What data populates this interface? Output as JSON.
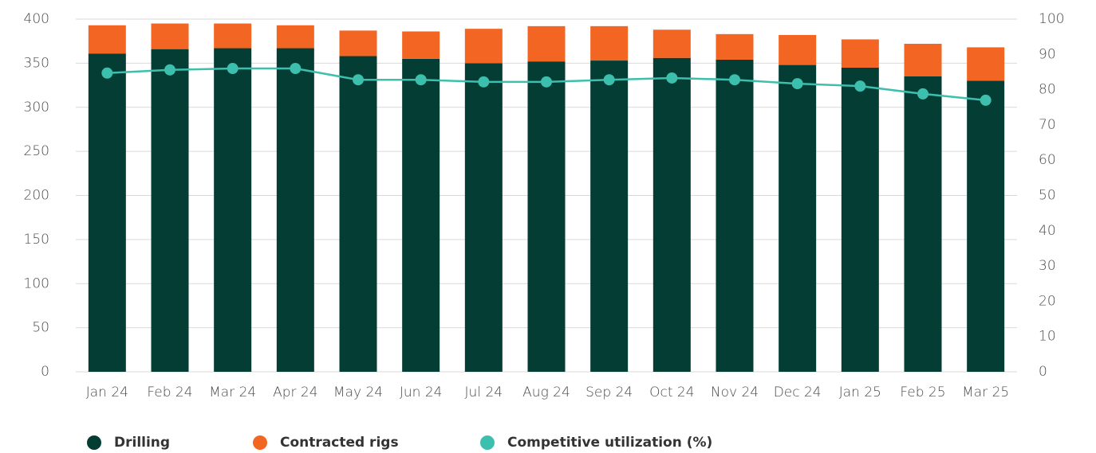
{
  "chart_data": {
    "type": "bar",
    "categories": [
      "Jan 24",
      "Feb 24",
      "Mar 24",
      "Apr 24",
      "May 24",
      "Jun 24",
      "Jul 24",
      "Aug 24",
      "Sep 24",
      "Oct 24",
      "Nov 24",
      "Dec 24",
      "Jan 25",
      "Feb 25",
      "Mar 25"
    ],
    "series": [
      {
        "name": "Drilling",
        "color": "#033d34",
        "values": [
          361,
          366,
          367,
          367,
          358,
          355,
          350,
          352,
          353,
          356,
          354,
          348,
          345,
          335,
          330
        ]
      },
      {
        "name": "Contracted rigs",
        "color": "#f26522",
        "values": [
          32,
          29,
          28,
          26,
          29,
          31,
          39,
          40,
          39,
          32,
          29,
          34,
          32,
          37,
          38
        ]
      },
      {
        "name": "Competitive utilization (%)",
        "color": "#3dbfad",
        "axis": "y2",
        "values": [
          84.7,
          85.6,
          86,
          86,
          82.8,
          82.8,
          82.2,
          82.2,
          82.8,
          83.3,
          82.8,
          81.7,
          81,
          78.8,
          77
        ]
      }
    ],
    "ylim": [
      0,
      400
    ],
    "yticks": [
      0,
      50,
      100,
      150,
      200,
      250,
      300,
      350,
      400
    ],
    "y2lim": [
      0,
      100
    ],
    "y2ticks": [
      0,
      10,
      20,
      30,
      40,
      50,
      60,
      70,
      80,
      90,
      100
    ],
    "grid": true,
    "stacked": true,
    "legend": "bottom"
  }
}
